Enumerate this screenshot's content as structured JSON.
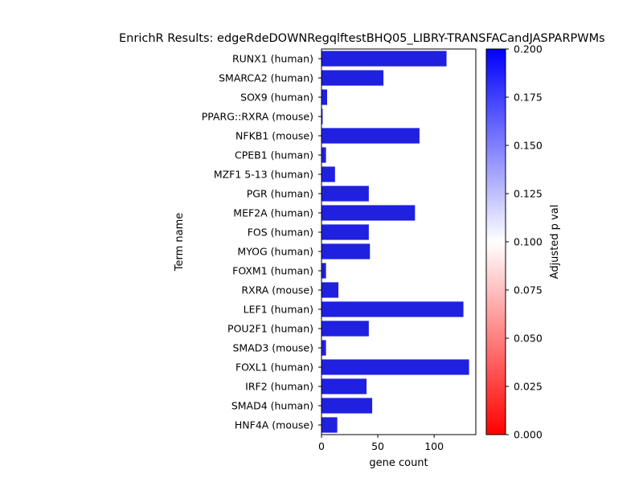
{
  "chart_data": {
    "type": "bar",
    "orientation": "horizontal",
    "title": "EnrichR Results: edgeRdeDOWNRegqlftestBHQ05_LIBRY-TRANSFACandJASPARPWMs",
    "xlabel": "gene count",
    "ylabel": "Term name",
    "xlim": [
      0,
      137
    ],
    "xticks": [
      0,
      50,
      100
    ],
    "grid": false,
    "categories": [
      "RUNX1 (human)",
      "SMARCA2 (human)",
      "SOX9 (human)",
      "PPARG::RXRA (mouse)",
      "NFKB1 (mouse)",
      "CPEB1 (human)",
      "MZF1 5-13 (human)",
      "PGR (human)",
      "MEF2A (human)",
      "FOS (human)",
      "MYOG (human)",
      "FOXM1 (human)",
      "RXRA (mouse)",
      "LEF1 (human)",
      "POU2F1 (human)",
      "SMAD3 (mouse)",
      "FOXL1 (human)",
      "IRF2 (human)",
      "SMAD4 (human)",
      "HNF4A (mouse)"
    ],
    "values": [
      111,
      55,
      5,
      1,
      87,
      4,
      12,
      42,
      83,
      42,
      43,
      4,
      15,
      126,
      42,
      4,
      131,
      40,
      45,
      14
    ],
    "bar_color": "#2020e0",
    "colorbar": {
      "label": "Adjusted p val",
      "range": [
        0,
        0.2
      ],
      "ticks": [
        "0.000",
        "0.025",
        "0.050",
        "0.075",
        "0.100",
        "0.125",
        "0.150",
        "0.175",
        "0.200"
      ],
      "colors": [
        "#ff0000",
        "#ffffff",
        "#0000ff"
      ]
    }
  }
}
